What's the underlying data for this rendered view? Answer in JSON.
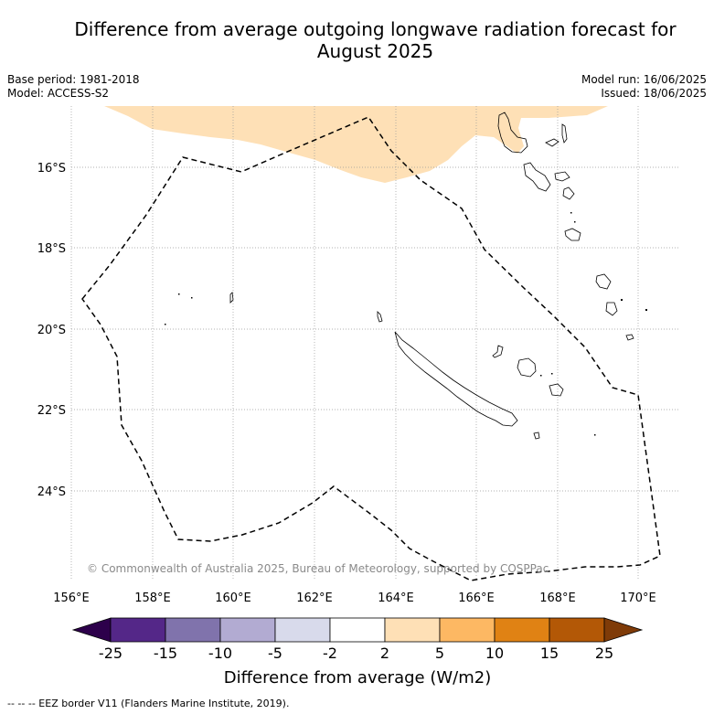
{
  "header": {
    "title_line1": "Difference from average outgoing longwave radiation forecast for",
    "title_line2": "August 2025",
    "base_period": "Base period: 1981-2018",
    "model": "Model: ACCESS-S2",
    "model_run": "Model run: 16/06/2025",
    "issued": "Issued: 18/06/2025"
  },
  "map": {
    "copyright": "© Commonwealth of Australia 2025, Bureau of Meteorology, supported by COSPPac",
    "lat_labels": [
      "16°S",
      "18°S",
      "20°S",
      "22°S",
      "24°S"
    ],
    "lon_labels": [
      "156°E",
      "158°E",
      "160°E",
      "162°E",
      "164°E",
      "166°E",
      "168°E",
      "170°E"
    ],
    "anomaly_fill_color": "#fee0b6",
    "eez_border_style": "dashed black"
  },
  "colorbar": {
    "ticks": [
      "-25",
      "-15",
      "-10",
      "-5",
      "-2",
      "2",
      "5",
      "10",
      "15",
      "25"
    ],
    "colors": [
      "#2d004b",
      "#542788",
      "#8073ac",
      "#b2abd2",
      "#d8daeb",
      "#ffffff",
      "#fee0b6",
      "#fdb863",
      "#e08214",
      "#b35806",
      "#7f3b08"
    ],
    "label": "Difference from average (W/m2)"
  },
  "footer": {
    "legend": "--  --  -- EEZ border V11 (Flanders Marine Institute, 2019)."
  }
}
